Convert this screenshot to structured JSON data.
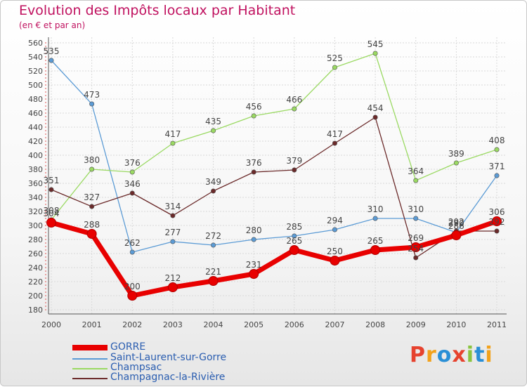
{
  "title": "Evolution des Impôts locaux par Habitant",
  "subtitle": "(en € et par an)",
  "logo": "Proxiti",
  "chart_data": {
    "type": "line",
    "title": "Evolution des Impôts locaux par Habitant",
    "subtitle": "(en € et par an)",
    "xlabel": "",
    "ylabel": "",
    "x": [
      "2000",
      "2001",
      "2002",
      "2003",
      "2004",
      "2005",
      "2006",
      "2007",
      "2008",
      "2009",
      "2010",
      "2011"
    ],
    "ylim": [
      180,
      560
    ],
    "yticks": [
      180,
      200,
      220,
      240,
      260,
      280,
      300,
      320,
      340,
      360,
      380,
      400,
      420,
      440,
      460,
      480,
      500,
      520,
      540,
      560
    ],
    "grid": true,
    "legend_position": "bottom-left",
    "series": [
      {
        "name": "GORRE",
        "color": "#e80000",
        "values": [
          304,
          288,
          200,
          212,
          221,
          231,
          265,
          250,
          265,
          269,
          286,
          306
        ]
      },
      {
        "name": "Saint-Laurent-sur-Gorre",
        "color": "#5b9bd5",
        "values": [
          535,
          473,
          262,
          277,
          272,
          280,
          285,
          294,
          310,
          310,
          290,
          371
        ]
      },
      {
        "name": "Champsac",
        "color": "#9ad962",
        "values": [
          308,
          380,
          376,
          417,
          435,
          456,
          466,
          525,
          545,
          364,
          389,
          408
        ]
      },
      {
        "name": "Champagnac-la-Rivière",
        "color": "#6b2a2a",
        "values": [
          351,
          327,
          346,
          314,
          349,
          376,
          379,
          417,
          454,
          254,
          292,
          292
        ]
      }
    ],
    "point_labels": [
      [
        "304",
        "288",
        "200",
        "212",
        "221",
        "231",
        "265",
        "250",
        "265",
        "269",
        "286",
        "306"
      ],
      [
        "535",
        "473",
        "262",
        "277",
        "272",
        "280",
        "285",
        "294",
        "310",
        "310",
        "290",
        "371"
      ],
      [
        "308",
        "380",
        "376",
        "417",
        "435",
        "456",
        "466",
        "525",
        "545",
        "364",
        "389",
        "408"
      ],
      [
        "351",
        "327",
        "346",
        "314",
        "349",
        "376",
        "379",
        "417",
        "454",
        "254",
        "292",
        "292"
      ]
    ]
  }
}
